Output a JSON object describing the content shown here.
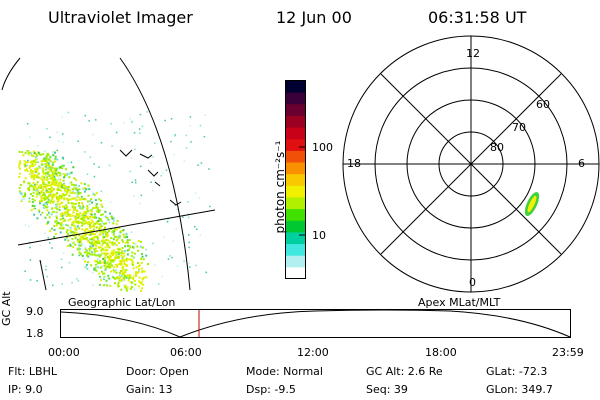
{
  "header": {
    "instrument": "Ultraviolet Imager",
    "date": "12 Jun 00",
    "time": "06:31:58 UT"
  },
  "colorbar": {
    "unit_label": "photon cm⁻²s⁻¹",
    "ticks": [
      "100",
      "10"
    ],
    "colors": [
      "#000033",
      "#3a003a",
      "#6a0030",
      "#9c0020",
      "#c80018",
      "#e01010",
      "#f05008",
      "#f89000",
      "#f8c800",
      "#f0f000",
      "#b0f000",
      "#40e000",
      "#00c830",
      "#00d0a0",
      "#40e8e0",
      "#b0f0f0",
      "#ffffff"
    ]
  },
  "polar": {
    "mlt_labels": [
      "12",
      "18",
      "6",
      "0"
    ],
    "lat_labels": [
      "60",
      "70",
      "80"
    ]
  },
  "timeline": {
    "y_axis_title": "GC Alt",
    "y_ticks": [
      "9.0",
      "1.8"
    ],
    "left_caption": "Geographic Lat/Lon",
    "right_caption": "Apex MLat/MLT",
    "x_ticks": [
      "00:00",
      "06:00",
      "12:00",
      "18:00",
      "23:59"
    ],
    "marker_time": "06:31:58",
    "marker_color": "#c00000"
  },
  "footer": {
    "flt": "Flt:  LBHL",
    "ip": "IP:  9.0",
    "door": "Door:  Open",
    "gain": "Gain:  13",
    "mode": "Mode:  Normal",
    "dsp": "Dsp:    -9.5",
    "gcalt": "GC Alt:  2.6 Re",
    "seq": "Seq:  39",
    "glat": "GLat:  -72.3",
    "glon": "GLon:  349.7"
  }
}
